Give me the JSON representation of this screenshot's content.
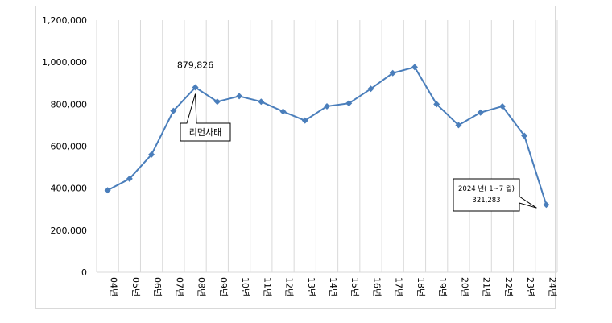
{
  "chart_data": {
    "type": "line",
    "categories": [
      "04년",
      "05년",
      "06년",
      "07년",
      "08년",
      "09년",
      "10년",
      "11년",
      "12년",
      "13년",
      "14년",
      "15년",
      "16년",
      "17년",
      "18년",
      "19년",
      "20년",
      "21년",
      "22년",
      "23년",
      "24년"
    ],
    "values": [
      390000,
      445000,
      560000,
      768000,
      879826,
      812000,
      838000,
      812000,
      765000,
      722000,
      790000,
      804000,
      873000,
      948000,
      976000,
      800000,
      700000,
      760000,
      790000,
      650000,
      321283
    ],
    "ylim": [
      0,
      1200000
    ],
    "yticks": [
      "0",
      "200,000",
      "400,000",
      "600,000",
      "800,000",
      "1,000,000",
      "1,200,000"
    ],
    "grid": "vertical",
    "line_color": "#4a7ebb",
    "annotations": {
      "peak_value": "879,826",
      "peak_callout": "리먼사태",
      "last_callout_line1": "2024 년( 1~7 월)",
      "last_callout_line2": "321,283"
    }
  }
}
